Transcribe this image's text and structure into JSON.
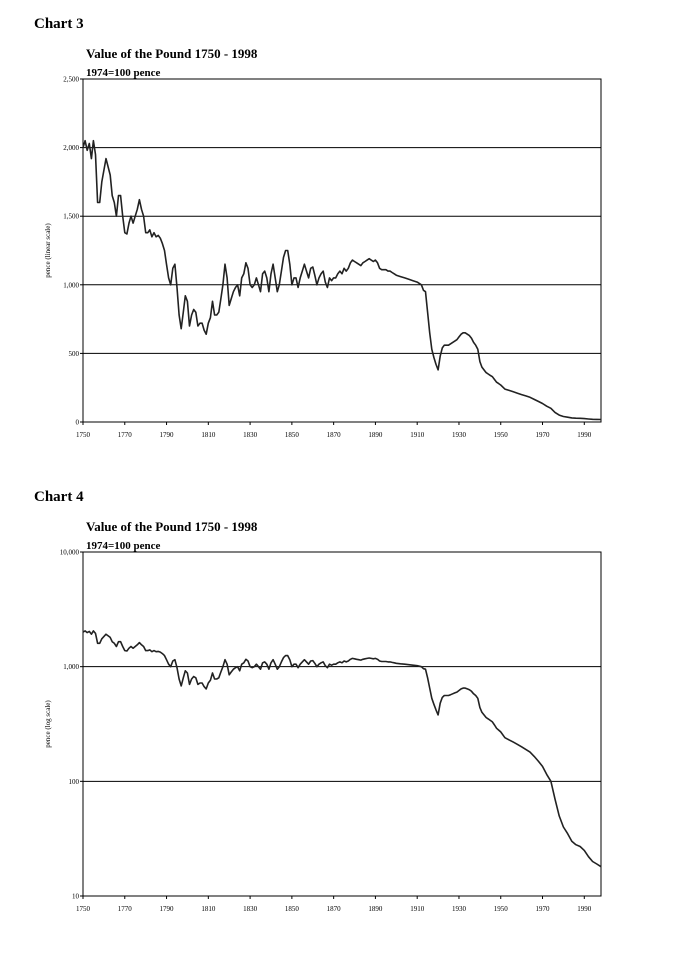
{
  "chart_data": [
    {
      "type": "line",
      "heading": "Chart 3",
      "title": "Value of the Pound 1750 - 1998",
      "subtitle": "1974=100 pence",
      "ylabel": "pence (linear scale)",
      "yscale": "linear",
      "grid": true,
      "color": "#222222",
      "xlim": [
        1750,
        1998
      ],
      "xticks": [
        1750,
        1770,
        1790,
        1810,
        1830,
        1850,
        1870,
        1890,
        1910,
        1930,
        1950,
        1970,
        1990
      ],
      "ylim": [
        0,
        2500
      ],
      "yticks": [
        0,
        500,
        {
          "value": 1000,
          "label": "1,000"
        },
        {
          "value": 1500,
          "label": "1,500"
        },
        {
          "value": 2000,
          "label": "2,000"
        },
        {
          "value": 2500,
          "label": "2,500"
        }
      ],
      "x": [
        1750,
        1751,
        1752,
        1753,
        1754,
        1755,
        1756,
        1757,
        1758,
        1759,
        1761,
        1763,
        1764,
        1765,
        1766,
        1767,
        1768,
        1769,
        1770,
        1771,
        1772,
        1773,
        1774,
        1775,
        1776,
        1777,
        1778,
        1779,
        1780,
        1781,
        1782,
        1783,
        1784,
        1785,
        1786,
        1787,
        1788,
        1789,
        1790,
        1791,
        1792,
        1793,
        1794,
        1795,
        1796,
        1797,
        1798,
        1799,
        1800,
        1801,
        1802,
        1803,
        1804,
        1805,
        1806,
        1807,
        1808,
        1809,
        1810,
        1811,
        1812,
        1813,
        1814,
        1815,
        1816,
        1817,
        1818,
        1819,
        1820,
        1821,
        1822,
        1823,
        1824,
        1825,
        1826,
        1827,
        1828,
        1829,
        1830,
        1831,
        1832,
        1833,
        1834,
        1835,
        1836,
        1837,
        1838,
        1839,
        1840,
        1841,
        1842,
        1843,
        1844,
        1845,
        1846,
        1847,
        1848,
        1849,
        1850,
        1851,
        1852,
        1853,
        1854,
        1855,
        1856,
        1857,
        1858,
        1859,
        1860,
        1861,
        1862,
        1863,
        1864,
        1865,
        1866,
        1867,
        1868,
        1869,
        1870,
        1871,
        1872,
        1873,
        1874,
        1875,
        1876,
        1877,
        1878,
        1879,
        1880,
        1881,
        1882,
        1883,
        1884,
        1885,
        1886,
        1887,
        1888,
        1889,
        1890,
        1891,
        1892,
        1893,
        1894,
        1895,
        1896,
        1897,
        1898,
        1899,
        1900,
        1902,
        1904,
        1906,
        1908,
        1910,
        1912,
        1913,
        1914,
        1915,
        1916,
        1917,
        1918,
        1919,
        1920,
        1921,
        1922,
        1923,
        1924,
        1925,
        1926,
        1927,
        1928,
        1929,
        1930,
        1931,
        1932,
        1933,
        1934,
        1935,
        1936,
        1937,
        1938,
        1939,
        1940,
        1941,
        1942,
        1943,
        1944,
        1945,
        1946,
        1947,
        1948,
        1949,
        1950,
        1952,
        1954,
        1956,
        1958,
        1960,
        1962,
        1964,
        1966,
        1968,
        1970,
        1972,
        1974,
        1976,
        1978,
        1980,
        1982,
        1984,
        1986,
        1988,
        1990,
        1992,
        1994,
        1996,
        1998
      ],
      "values": [
        2000,
        2050,
        1980,
        2030,
        1920,
        2050,
        1950,
        1600,
        1600,
        1750,
        1920,
        1800,
        1650,
        1600,
        1500,
        1650,
        1650,
        1500,
        1380,
        1370,
        1450,
        1500,
        1450,
        1500,
        1550,
        1620,
        1550,
        1500,
        1380,
        1380,
        1400,
        1350,
        1380,
        1350,
        1360,
        1340,
        1300,
        1250,
        1150,
        1050,
        1000,
        1120,
        1150,
        980,
        780,
        680,
        800,
        920,
        880,
        700,
        780,
        820,
        800,
        700,
        720,
        720,
        670,
        640,
        720,
        760,
        880,
        780,
        780,
        800,
        900,
        1000,
        1150,
        1050,
        850,
        900,
        950,
        980,
        1000,
        920,
        1050,
        1080,
        1160,
        1120,
        1000,
        980,
        1000,
        1050,
        1000,
        950,
        1080,
        1100,
        1050,
        950,
        1080,
        1150,
        1050,
        950,
        1000,
        1100,
        1200,
        1250,
        1250,
        1150,
        1000,
        1050,
        1050,
        980,
        1050,
        1100,
        1150,
        1100,
        1050,
        1120,
        1130,
        1070,
        1000,
        1050,
        1080,
        1100,
        1020,
        980,
        1050,
        1030,
        1050,
        1050,
        1080,
        1100,
        1080,
        1120,
        1100,
        1120,
        1160,
        1180,
        1170,
        1160,
        1150,
        1140,
        1160,
        1170,
        1180,
        1190,
        1180,
        1170,
        1180,
        1160,
        1120,
        1110,
        1110,
        1110,
        1100,
        1100,
        1090,
        1080,
        1070,
        1060,
        1050,
        1040,
        1030,
        1020,
        1000,
        960,
        950,
        800,
        650,
        530,
        470,
        420,
        380,
        480,
        540,
        560,
        560,
        560,
        570,
        580,
        590,
        600,
        620,
        640,
        650,
        650,
        640,
        630,
        610,
        580,
        560,
        530,
        440,
        400,
        380,
        360,
        350,
        340,
        330,
        310,
        290,
        280,
        270,
        240,
        230,
        220,
        210,
        200,
        190,
        180,
        165,
        150,
        135,
        115,
        100,
        70,
        50,
        40,
        35,
        30,
        28,
        27,
        25,
        22,
        20,
        19,
        18
      ]
    },
    {
      "type": "line",
      "heading": "Chart 4",
      "title": "Value of the Pound 1750 - 1998",
      "subtitle": "1974=100 pence",
      "ylabel": "pence (log scale)",
      "yscale": "log",
      "grid": true,
      "color": "#222222",
      "xlim": [
        1750,
        1998
      ],
      "xticks": [
        1750,
        1770,
        1790,
        1810,
        1830,
        1850,
        1870,
        1890,
        1910,
        1930,
        1950,
        1970,
        1990
      ],
      "ylim": [
        10,
        10000
      ],
      "yticks": [
        10,
        100,
        {
          "value": 1000,
          "label": "1,000"
        },
        {
          "value": 10000,
          "label": "10,000"
        }
      ],
      "x": [
        1750,
        1751,
        1752,
        1753,
        1754,
        1755,
        1756,
        1757,
        1758,
        1759,
        1761,
        1763,
        1764,
        1765,
        1766,
        1767,
        1768,
        1769,
        1770,
        1771,
        1772,
        1773,
        1774,
        1775,
        1776,
        1777,
        1778,
        1779,
        1780,
        1781,
        1782,
        1783,
        1784,
        1785,
        1786,
        1787,
        1788,
        1789,
        1790,
        1791,
        1792,
        1793,
        1794,
        1795,
        1796,
        1797,
        1798,
        1799,
        1800,
        1801,
        1802,
        1803,
        1804,
        1805,
        1806,
        1807,
        1808,
        1809,
        1810,
        1811,
        1812,
        1813,
        1814,
        1815,
        1816,
        1817,
        1818,
        1819,
        1820,
        1821,
        1822,
        1823,
        1824,
        1825,
        1826,
        1827,
        1828,
        1829,
        1830,
        1831,
        1832,
        1833,
        1834,
        1835,
        1836,
        1837,
        1838,
        1839,
        1840,
        1841,
        1842,
        1843,
        1844,
        1845,
        1846,
        1847,
        1848,
        1849,
        1850,
        1851,
        1852,
        1853,
        1854,
        1855,
        1856,
        1857,
        1858,
        1859,
        1860,
        1861,
        1862,
        1863,
        1864,
        1865,
        1866,
        1867,
        1868,
        1869,
        1870,
        1871,
        1872,
        1873,
        1874,
        1875,
        1876,
        1877,
        1878,
        1879,
        1880,
        1881,
        1882,
        1883,
        1884,
        1885,
        1886,
        1887,
        1888,
        1889,
        1890,
        1891,
        1892,
        1893,
        1894,
        1895,
        1896,
        1897,
        1898,
        1899,
        1900,
        1902,
        1904,
        1906,
        1908,
        1910,
        1912,
        1913,
        1914,
        1915,
        1916,
        1917,
        1918,
        1919,
        1920,
        1921,
        1922,
        1923,
        1924,
        1925,
        1926,
        1927,
        1928,
        1929,
        1930,
        1931,
        1932,
        1933,
        1934,
        1935,
        1936,
        1937,
        1938,
        1939,
        1940,
        1941,
        1942,
        1943,
        1944,
        1945,
        1946,
        1947,
        1948,
        1949,
        1950,
        1952,
        1954,
        1956,
        1958,
        1960,
        1962,
        1964,
        1966,
        1968,
        1970,
        1972,
        1974,
        1976,
        1978,
        1980,
        1982,
        1984,
        1986,
        1988,
        1990,
        1992,
        1994,
        1996,
        1998
      ],
      "values": [
        2000,
        2050,
        1980,
        2030,
        1920,
        2050,
        1950,
        1600,
        1600,
        1750,
        1920,
        1800,
        1650,
        1600,
        1500,
        1650,
        1650,
        1500,
        1380,
        1370,
        1450,
        1500,
        1450,
        1500,
        1550,
        1620,
        1550,
        1500,
        1380,
        1380,
        1400,
        1350,
        1380,
        1350,
        1360,
        1340,
        1300,
        1250,
        1150,
        1050,
        1000,
        1120,
        1150,
        980,
        780,
        680,
        800,
        920,
        880,
        700,
        780,
        820,
        800,
        700,
        720,
        720,
        670,
        640,
        720,
        760,
        880,
        780,
        780,
        800,
        900,
        1000,
        1150,
        1050,
        850,
        900,
        950,
        980,
        1000,
        920,
        1050,
        1080,
        1160,
        1120,
        1000,
        980,
        1000,
        1050,
        1000,
        950,
        1080,
        1100,
        1050,
        950,
        1080,
        1150,
        1050,
        950,
        1000,
        1100,
        1200,
        1250,
        1250,
        1150,
        1000,
        1050,
        1050,
        980,
        1050,
        1100,
        1150,
        1100,
        1050,
        1120,
        1130,
        1070,
        1000,
        1050,
        1080,
        1100,
        1020,
        980,
        1050,
        1030,
        1050,
        1050,
        1080,
        1100,
        1080,
        1120,
        1100,
        1120,
        1160,
        1180,
        1170,
        1160,
        1150,
        1140,
        1160,
        1170,
        1180,
        1190,
        1180,
        1170,
        1180,
        1160,
        1120,
        1110,
        1110,
        1110,
        1100,
        1100,
        1090,
        1080,
        1070,
        1060,
        1050,
        1040,
        1030,
        1020,
        1000,
        960,
        950,
        800,
        650,
        530,
        470,
        420,
        380,
        480,
        540,
        560,
        560,
        560,
        570,
        580,
        590,
        600,
        620,
        640,
        650,
        650,
        640,
        630,
        610,
        580,
        560,
        530,
        440,
        400,
        380,
        360,
        350,
        340,
        330,
        310,
        290,
        280,
        270,
        240,
        230,
        220,
        210,
        200,
        190,
        180,
        165,
        150,
        135,
        115,
        100,
        70,
        50,
        40,
        35,
        30,
        28,
        27,
        25,
        22,
        20,
        19,
        18
      ]
    }
  ]
}
